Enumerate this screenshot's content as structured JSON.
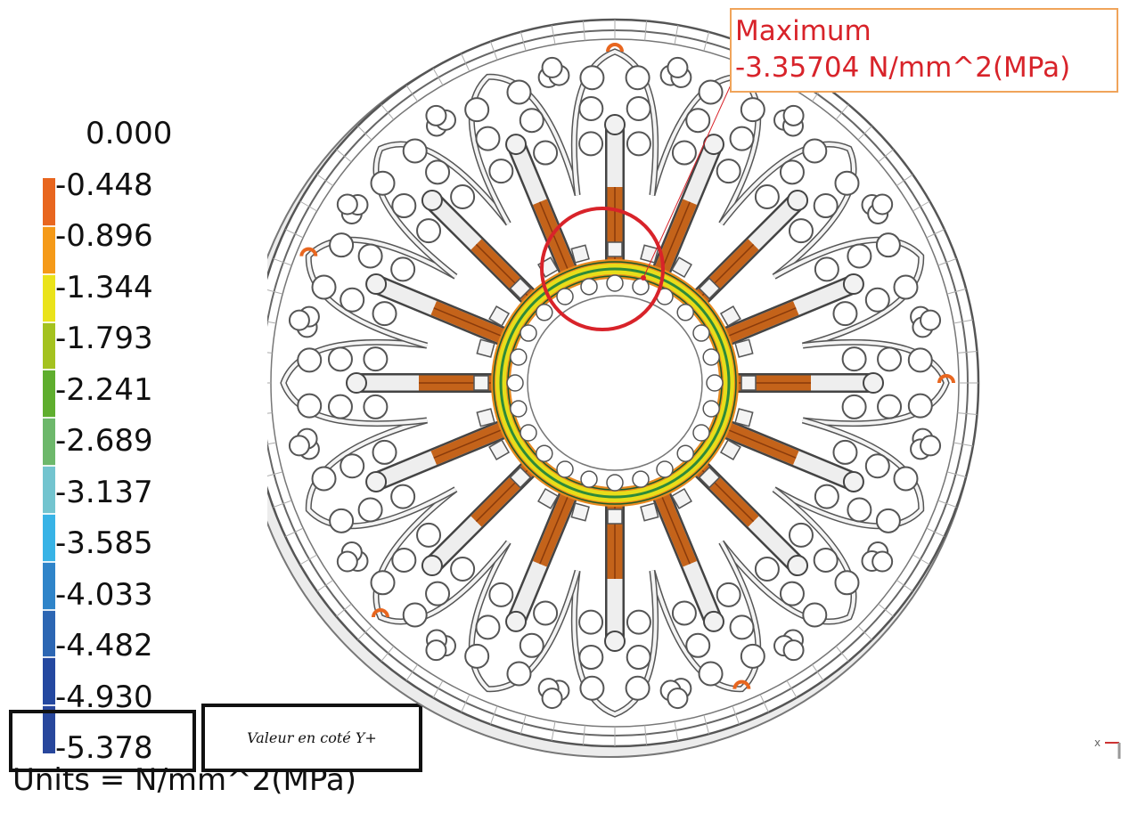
{
  "legend": {
    "ticks": [
      "0.000",
      "-0.448",
      "-0.896",
      "-1.344",
      "-1.793",
      "-2.241",
      "-2.689",
      "-3.137",
      "-3.585",
      "-4.033",
      "-4.482",
      "-4.930",
      "-5.378"
    ],
    "colors": [
      "#e8661f",
      "#f59a18",
      "#eae31a",
      "#a4c21f",
      "#5fae2e",
      "#6db86b",
      "#73c4cf",
      "#38b3e6",
      "#2f84c9",
      "#2c66b3",
      "#2448a0",
      "#28479c"
    ],
    "units": "Units = N/mm^2(MPa)"
  },
  "annotation": {
    "title": "Maximum",
    "value": "-3.35704 N/mm^2(MPa)"
  },
  "note": "Valeur en coté Y+",
  "axis": {
    "x_label": "x"
  },
  "colors": {
    "callout_text": "#d8232a",
    "callout_border": "#f0a45a",
    "highlight_circle": "#d8232a"
  }
}
